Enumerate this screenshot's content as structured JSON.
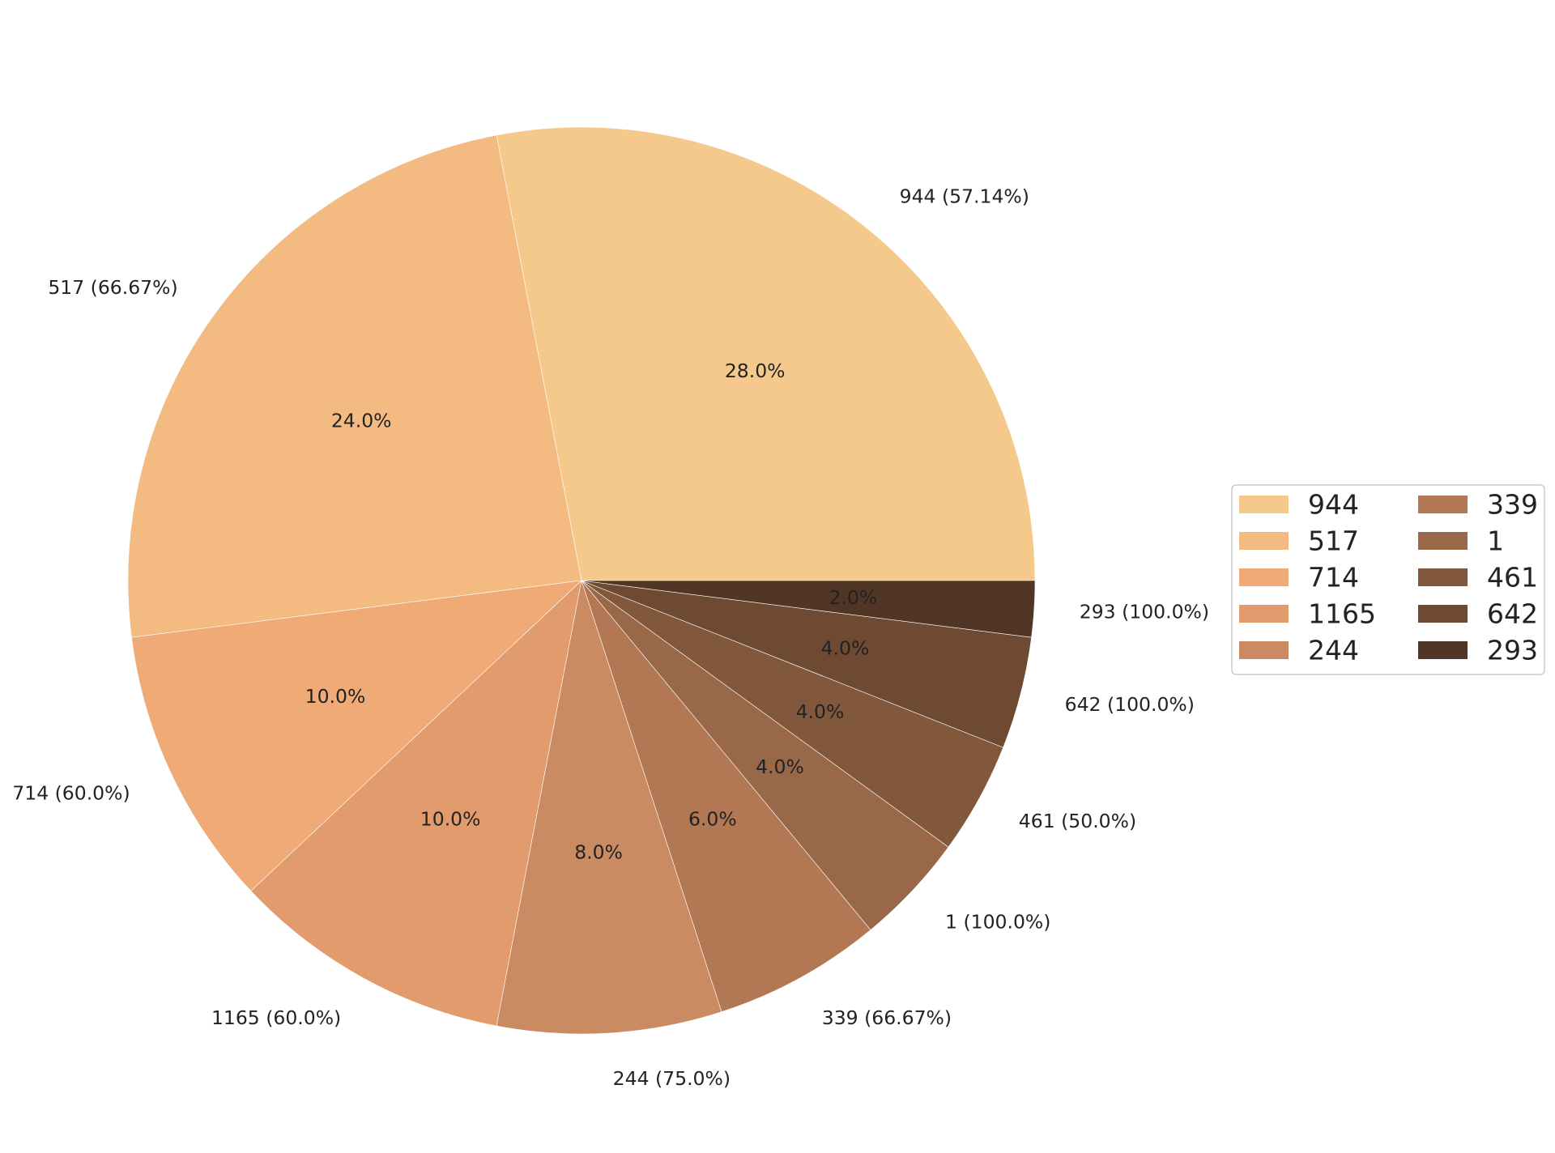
{
  "chart_data": {
    "type": "pie",
    "slices": [
      {
        "name": "944",
        "value": 28.0,
        "label": "944 (57.14%)",
        "pct_label": "28.0%",
        "color": "#f5c98c"
      },
      {
        "name": "517",
        "value": 24.0,
        "label": "517 (66.67%)",
        "pct_label": "24.0%",
        "color": "#f3bb82"
      },
      {
        "name": "714",
        "value": 10.0,
        "label": "714 (60.0%)",
        "pct_label": "10.0%",
        "color": "#efaa77"
      },
      {
        "name": "1165",
        "value": 10.0,
        "label": "1165 (60.0%)",
        "pct_label": "10.0%",
        "color": "#e29b6c"
      },
      {
        "name": "244",
        "value": 8.0,
        "label": "244 (75.0%)",
        "pct_label": "8.0%",
        "color": "#cb8b62"
      },
      {
        "name": "339",
        "value": 6.0,
        "label": "339 (66.67%)",
        "pct_label": "6.0%",
        "color": "#b27853"
      },
      {
        "name": "1",
        "value": 4.0,
        "label": "1 (100.0%)",
        "pct_label": "4.0%",
        "color": "#996848"
      },
      {
        "name": "461",
        "value": 4.0,
        "label": "461 (50.0%)",
        "pct_label": "4.0%",
        "color": "#82583c"
      },
      {
        "name": "642",
        "value": 4.0,
        "label": "642 (100.0%)",
        "pct_label": "4.0%",
        "color": "#6d4a31"
      },
      {
        "name": "293",
        "value": 2.0,
        "label": "293 (100.0%)",
        "pct_label": "2.0%",
        "color": "#523625"
      }
    ],
    "start_angle_deg": 0,
    "direction": "counterclockwise",
    "legend": {
      "placement": "right",
      "columns": 2,
      "entries": [
        "944",
        "517",
        "714",
        "1165",
        "244",
        "339",
        "1",
        "461",
        "642",
        "293"
      ]
    }
  }
}
